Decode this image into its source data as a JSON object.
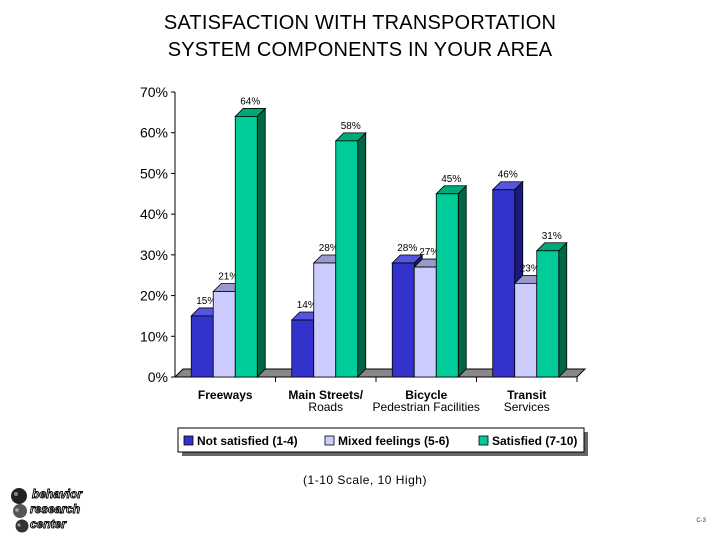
{
  "title": {
    "line1": "SATISFACTION WITH TRANSPORTATION",
    "line2": "SYSTEM COMPONENTS IN YOUR AREA"
  },
  "footnote": "(1-10 Scale, 10 High)",
  "page_number": "C-3",
  "logo": {
    "line1": "behavior",
    "line2": "research",
    "line3": "center"
  },
  "chart_data": {
    "type": "bar",
    "categories": [
      [
        "Freeways"
      ],
      [
        "Main Streets/",
        "Roads"
      ],
      [
        "Bicycle",
        "Pedestrian Facilities"
      ],
      [
        "Transit",
        "Services"
      ]
    ],
    "series": [
      {
        "name": "Not satisfied (1-4)",
        "values": [
          15,
          14,
          28,
          46
        ],
        "labels": [
          "15%",
          "14%",
          "28%",
          "46%"
        ],
        "color": "#3333cc",
        "side": "#1a1a80",
        "top": "#5555dd"
      },
      {
        "name": "Mixed feelings (5-6)",
        "values": [
          21,
          28,
          27,
          23
        ],
        "labels": [
          "21%",
          "28%",
          "27%",
          "23%"
        ],
        "color": "#ccccff",
        "side": "#8888bb",
        "top": "#9999cc"
      },
      {
        "name": "Satisfied (7-10)",
        "values": [
          64,
          58,
          45,
          31
        ],
        "labels": [
          "64%",
          "58%",
          "45%",
          "31%"
        ],
        "color": "#00cc99",
        "side": "#006644",
        "top": "#00aa77"
      }
    ],
    "ylim": [
      0,
      70
    ],
    "yticks": [
      0,
      10,
      20,
      30,
      40,
      50,
      60,
      70
    ],
    "ytick_labels": [
      "0%",
      "10%",
      "20%",
      "30%",
      "40%",
      "50%",
      "60%",
      "70%"
    ],
    "grid": false,
    "legend_position": "bottom"
  }
}
